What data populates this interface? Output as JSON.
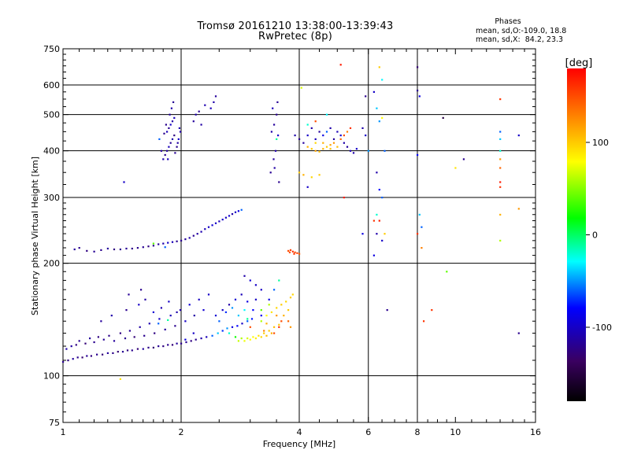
{
  "header": {
    "title_line1": "Tromsø 20161210 13:38:00-13:39:43",
    "title_line2": "RwPretec (8p)",
    "phases_title": "Phases",
    "phases_line1": "mean, sd,O:-109.0, 18.8",
    "phases_line2": "mean, sd,X:  84.2, 23.3"
  },
  "chart_data": {
    "type": "scatter",
    "xlabel": "Frequency [MHz]",
    "ylabel": "Stationary phase Virtual Height [km]",
    "xscale": "log",
    "yscale": "log",
    "xlim": [
      1,
      16
    ],
    "ylim": [
      75,
      750
    ],
    "xticks": [
      1,
      2,
      4,
      6,
      8,
      10,
      16
    ],
    "xgrid": [
      2,
      4,
      6,
      8
    ],
    "yticks": [
      75,
      100,
      200,
      300,
      400,
      500,
      600,
      750
    ],
    "ygrid": [
      100,
      200,
      300,
      400,
      500,
      600
    ],
    "colorbar": {
      "label": "[deg]",
      "range": [
        -180,
        180
      ],
      "ticks": [
        -100,
        0,
        100
      ]
    },
    "points": [
      [
        1.0,
        109,
        -120
      ],
      [
        1.03,
        110,
        -125
      ],
      [
        1.06,
        111,
        -115
      ],
      [
        1.09,
        112,
        -120
      ],
      [
        1.12,
        112,
        -130
      ],
      [
        1.15,
        113,
        -118
      ],
      [
        1.18,
        113,
        -125
      ],
      [
        1.22,
        114,
        -120
      ],
      [
        1.26,
        114,
        -128
      ],
      [
        1.3,
        115,
        -115
      ],
      [
        1.34,
        115,
        -122
      ],
      [
        1.38,
        116,
        -130
      ],
      [
        1.42,
        116,
        -118
      ],
      [
        1.46,
        117,
        -125
      ],
      [
        1.5,
        117,
        -120
      ],
      [
        1.55,
        118,
        -128
      ],
      [
        1.6,
        118,
        -115
      ],
      [
        1.65,
        119,
        -122
      ],
      [
        1.7,
        119,
        -130
      ],
      [
        1.75,
        120,
        -118
      ],
      [
        1.8,
        120,
        -125
      ],
      [
        1.85,
        121,
        -120
      ],
      [
        1.9,
        121,
        -128
      ],
      [
        1.95,
        122,
        -115
      ],
      [
        2.0,
        122,
        -122
      ],
      [
        2.06,
        123,
        -118
      ],
      [
        2.12,
        124,
        -125
      ],
      [
        2.18,
        125,
        -120
      ],
      [
        2.25,
        126,
        -110
      ],
      [
        2.32,
        127,
        -105
      ],
      [
        1.02,
        118,
        -110
      ],
      [
        1.05,
        120,
        -112
      ],
      [
        1.08,
        121,
        -125
      ],
      [
        1.1,
        124,
        -118
      ],
      [
        1.14,
        122,
        -128
      ],
      [
        1.17,
        126,
        -115
      ],
      [
        1.2,
        123,
        -120
      ],
      [
        1.23,
        127,
        -125
      ],
      [
        1.27,
        125,
        -118
      ],
      [
        1.31,
        128,
        -122
      ],
      [
        1.35,
        124,
        -115
      ],
      [
        1.4,
        130,
        -125
      ],
      [
        1.44,
        126,
        -120
      ],
      [
        1.48,
        132,
        -118
      ],
      [
        1.52,
        127,
        -128
      ],
      [
        1.57,
        135,
        -112
      ],
      [
        1.61,
        128,
        -120
      ],
      [
        1.66,
        138,
        -108
      ],
      [
        1.71,
        130,
        -125
      ],
      [
        1.76,
        142,
        -100
      ],
      [
        1.82,
        133,
        -115
      ],
      [
        1.88,
        145,
        -105
      ],
      [
        1.93,
        136,
        -120
      ],
      [
        1.99,
        150,
        -110
      ],
      [
        2.05,
        140,
        -100
      ],
      [
        2.1,
        155,
        -95
      ],
      [
        2.16,
        145,
        -112
      ],
      [
        2.22,
        160,
        -102
      ],
      [
        2.28,
        150,
        -95
      ],
      [
        2.35,
        165,
        -100
      ],
      [
        1.25,
        140,
        -115
      ],
      [
        1.33,
        145,
        -110
      ],
      [
        1.45,
        150,
        -120
      ],
      [
        1.56,
        155,
        -100
      ],
      [
        1.62,
        160,
        -112
      ],
      [
        1.7,
        148,
        -95
      ],
      [
        1.78,
        152,
        -108
      ],
      [
        1.86,
        158,
        -100
      ],
      [
        1.47,
        165,
        -118
      ],
      [
        1.58,
        170,
        -120
      ],
      [
        1.75,
        138,
        -60
      ],
      [
        1.85,
        141,
        -10
      ],
      [
        1.95,
        148,
        -110
      ],
      [
        2.05,
        125,
        -90
      ],
      [
        2.15,
        130,
        -100
      ],
      [
        1.4,
        98,
        90
      ],
      [
        2.4,
        128,
        -60
      ],
      [
        2.48,
        130,
        -40
      ],
      [
        2.55,
        132,
        -70
      ],
      [
        2.62,
        134,
        -50
      ],
      [
        2.7,
        135,
        -90
      ],
      [
        2.78,
        136,
        -80
      ],
      [
        2.86,
        138,
        -100
      ],
      [
        2.95,
        140,
        -60
      ],
      [
        3.03,
        142,
        -75
      ],
      [
        2.45,
        145,
        -95
      ],
      [
        2.55,
        150,
        -100
      ],
      [
        2.65,
        155,
        -110
      ],
      [
        2.75,
        160,
        -95
      ],
      [
        2.85,
        165,
        -105
      ],
      [
        2.95,
        158,
        -90
      ],
      [
        3.05,
        150,
        -80
      ],
      [
        3.1,
        160,
        -100
      ],
      [
        2.5,
        140,
        -60
      ],
      [
        2.6,
        148,
        -70
      ],
      [
        2.7,
        152,
        -50
      ],
      [
        2.8,
        145,
        -40
      ],
      [
        2.9,
        150,
        -30
      ],
      [
        2.65,
        130,
        -20
      ],
      [
        2.75,
        127,
        20
      ],
      [
        2.85,
        126,
        60
      ],
      [
        2.95,
        126,
        70
      ],
      [
        3.05,
        127,
        80
      ],
      [
        3.15,
        128,
        90
      ],
      [
        3.25,
        130,
        100
      ],
      [
        3.35,
        132,
        100
      ],
      [
        3.45,
        135,
        105
      ],
      [
        3.55,
        137,
        100
      ],
      [
        2.8,
        124,
        65
      ],
      [
        2.9,
        124,
        75
      ],
      [
        3.0,
        125,
        80
      ],
      [
        3.1,
        126,
        85
      ],
      [
        3.2,
        127,
        95
      ],
      [
        3.3,
        128,
        105
      ],
      [
        3.4,
        130,
        110
      ],
      [
        3.2,
        140,
        60
      ],
      [
        3.3,
        145,
        80
      ],
      [
        3.4,
        148,
        90
      ],
      [
        3.5,
        152,
        95
      ],
      [
        3.6,
        155,
        100
      ],
      [
        3.7,
        158,
        95
      ],
      [
        3.8,
        162,
        100
      ],
      [
        3.2,
        150,
        40
      ],
      [
        3.35,
        155,
        60
      ],
      [
        3.5,
        145,
        120
      ],
      [
        3.6,
        140,
        150
      ],
      [
        3.45,
        130,
        150
      ],
      [
        3.55,
        135,
        160
      ],
      [
        3.3,
        138,
        110
      ],
      [
        3.25,
        132,
        130
      ],
      [
        3.65,
        145,
        110
      ],
      [
        3.75,
        150,
        100
      ],
      [
        3.85,
        165,
        95
      ],
      [
        3.75,
        140,
        140
      ],
      [
        3.8,
        135,
        120
      ],
      [
        3.0,
        135,
        150
      ],
      [
        2.95,
        142,
        -10
      ],
      [
        3.2,
        170,
        -100
      ],
      [
        3.35,
        160,
        -90
      ],
      [
        3.45,
        170,
        -60
      ],
      [
        3.55,
        180,
        -10
      ],
      [
        3.2,
        145,
        -85
      ],
      [
        3.1,
        175,
        -100
      ],
      [
        3.0,
        180,
        -95
      ],
      [
        2.9,
        185,
        -110
      ],
      [
        1.07,
        218,
        -115
      ],
      [
        1.1,
        220,
        -120
      ],
      [
        1.15,
        216,
        -125
      ],
      [
        1.2,
        215,
        -118
      ],
      [
        1.25,
        217,
        -120
      ],
      [
        1.3,
        219,
        -115
      ],
      [
        1.35,
        218,
        -125
      ],
      [
        1.4,
        218,
        -120
      ],
      [
        1.45,
        219,
        -118
      ],
      [
        1.5,
        219,
        -122
      ],
      [
        1.55,
        220,
        -120
      ],
      [
        1.6,
        221,
        -118
      ],
      [
        1.65,
        222,
        -125
      ],
      [
        1.7,
        223,
        -120
      ],
      [
        1.75,
        225,
        -115
      ],
      [
        1.8,
        226,
        -110
      ],
      [
        1.85,
        227,
        -100
      ],
      [
        1.9,
        228,
        -105
      ],
      [
        1.95,
        229,
        -118
      ],
      [
        2.0,
        230,
        -120
      ],
      [
        2.05,
        232,
        -115
      ],
      [
        2.1,
        234,
        -110
      ],
      [
        2.15,
        237,
        -118
      ],
      [
        2.2,
        240,
        -112
      ],
      [
        2.25,
        243,
        -108
      ],
      [
        2.3,
        247,
        -105
      ],
      [
        2.35,
        250,
        -100
      ],
      [
        2.4,
        253,
        -95
      ],
      [
        2.45,
        256,
        -100
      ],
      [
        2.5,
        259,
        -105
      ],
      [
        2.55,
        262,
        -98
      ],
      [
        2.6,
        265,
        -102
      ],
      [
        2.65,
        268,
        -95
      ],
      [
        2.7,
        271,
        -110
      ],
      [
        2.75,
        274,
        -100
      ],
      [
        2.8,
        276,
        -90
      ],
      [
        2.85,
        278,
        -60
      ],
      [
        1.7,
        226,
        40
      ],
      [
        1.82,
        221,
        -60
      ],
      [
        1.43,
        330,
        -100
      ],
      [
        3.75,
        216,
        150
      ],
      [
        3.8,
        217,
        155
      ],
      [
        3.85,
        215,
        160
      ],
      [
        3.9,
        214,
        150
      ],
      [
        3.95,
        213,
        155
      ],
      [
        4.0,
        212,
        145
      ],
      [
        3.78,
        214,
        150
      ],
      [
        3.88,
        212,
        160
      ],
      [
        1.8,
        380,
        -110
      ],
      [
        1.82,
        390,
        -120
      ],
      [
        1.84,
        400,
        -115
      ],
      [
        1.86,
        410,
        -105
      ],
      [
        1.88,
        420,
        -118
      ],
      [
        1.9,
        430,
        -110
      ],
      [
        1.92,
        440,
        -125
      ],
      [
        1.84,
        450,
        -105
      ],
      [
        1.86,
        460,
        -118
      ],
      [
        1.88,
        470,
        -100
      ],
      [
        1.9,
        480,
        -112
      ],
      [
        1.92,
        490,
        -105
      ],
      [
        1.78,
        400,
        -115
      ],
      [
        1.95,
        410,
        -120
      ],
      [
        1.97,
        430,
        -100
      ],
      [
        1.99,
        450,
        -110
      ],
      [
        1.83,
        470,
        -120
      ],
      [
        1.87,
        500,
        -115
      ],
      [
        1.89,
        520,
        -110
      ],
      [
        1.91,
        540,
        -118
      ],
      [
        1.85,
        380,
        -105
      ],
      [
        1.93,
        395,
        -118
      ],
      [
        1.96,
        420,
        -112
      ],
      [
        1.81,
        445,
        -120
      ],
      [
        1.98,
        460,
        -108
      ],
      [
        1.76,
        430,
        -60
      ],
      [
        2.15,
        480,
        -115
      ],
      [
        2.18,
        500,
        -110
      ],
      [
        2.22,
        510,
        -118
      ],
      [
        2.25,
        470,
        -112
      ],
      [
        2.38,
        520,
        -105
      ],
      [
        2.42,
        540,
        -110
      ],
      [
        2.45,
        560,
        -115
      ],
      [
        2.3,
        530,
        -108
      ],
      [
        3.4,
        450,
        -110
      ],
      [
        3.45,
        470,
        -115
      ],
      [
        3.5,
        500,
        -120
      ],
      [
        3.42,
        520,
        -105
      ],
      [
        3.52,
        540,
        -118
      ],
      [
        3.48,
        400,
        -110
      ],
      [
        3.44,
        380,
        -115
      ],
      [
        3.38,
        350,
        -118
      ],
      [
        3.46,
        360,
        -112
      ],
      [
        3.55,
        330,
        -120
      ],
      [
        3.5,
        430,
        -10
      ],
      [
        3.53,
        440,
        -100
      ],
      [
        3.9,
        440,
        -110
      ],
      [
        4.0,
        430,
        -120
      ],
      [
        4.1,
        420,
        -115
      ],
      [
        4.2,
        440,
        -100
      ],
      [
        4.3,
        460,
        -110
      ],
      [
        4.4,
        430,
        -105
      ],
      [
        4.5,
        450,
        -115
      ],
      [
        4.6,
        440,
        -90
      ],
      [
        4.7,
        450,
        -60
      ],
      [
        4.8,
        460,
        -110
      ],
      [
        4.9,
        430,
        -115
      ],
      [
        5.0,
        450,
        -105
      ],
      [
        5.1,
        440,
        -95
      ],
      [
        5.2,
        420,
        -110
      ],
      [
        5.3,
        410,
        -115
      ],
      [
        5.4,
        400,
        -105
      ],
      [
        5.5,
        395,
        -110
      ],
      [
        5.6,
        405,
        -100
      ],
      [
        4.2,
        410,
        110
      ],
      [
        4.3,
        405,
        100
      ],
      [
        4.4,
        400,
        115
      ],
      [
        4.5,
        398,
        105
      ],
      [
        4.6,
        405,
        110
      ],
      [
        4.7,
        410,
        100
      ],
      [
        4.8,
        415,
        115
      ],
      [
        4.9,
        420,
        120
      ],
      [
        5.0,
        410,
        105
      ],
      [
        4.4,
        420,
        95
      ],
      [
        4.6,
        420,
        110
      ],
      [
        4.8,
        405,
        105
      ],
      [
        5.1,
        430,
        140
      ],
      [
        5.2,
        440,
        150
      ],
      [
        5.3,
        450,
        130
      ],
      [
        5.4,
        460,
        160
      ],
      [
        4.0,
        350,
        100
      ],
      [
        4.1,
        345,
        110
      ],
      [
        4.3,
        340,
        95
      ],
      [
        4.5,
        345,
        100
      ],
      [
        4.2,
        470,
        -20
      ],
      [
        4.4,
        480,
        150
      ],
      [
        4.7,
        500,
        -30
      ],
      [
        5.8,
        460,
        -110
      ],
      [
        5.9,
        440,
        -100
      ],
      [
        4.05,
        590,
        70
      ],
      [
        5.1,
        680,
        170
      ],
      [
        4.2,
        320,
        -100
      ],
      [
        5.2,
        300,
        170
      ],
      [
        5.9,
        560,
        -120
      ],
      [
        6.2,
        575,
        -100
      ],
      [
        6.5,
        620,
        -30
      ],
      [
        6.3,
        520,
        -40
      ],
      [
        6.4,
        480,
        -50
      ],
      [
        6.3,
        350,
        -110
      ],
      [
        6.4,
        315,
        -80
      ],
      [
        6.5,
        300,
        -60
      ],
      [
        6.3,
        270,
        -20
      ],
      [
        6.4,
        260,
        170
      ],
      [
        6.3,
        240,
        -110
      ],
      [
        6.2,
        210,
        -90
      ],
      [
        6.2,
        260,
        160
      ],
      [
        6.5,
        230,
        -100
      ],
      [
        5.8,
        240,
        -90
      ],
      [
        6.0,
        400,
        -50
      ],
      [
        6.6,
        240,
        100
      ],
      [
        6.7,
        150,
        -120
      ],
      [
        6.4,
        670,
        100
      ],
      [
        6.5,
        490,
        80
      ],
      [
        6.6,
        400,
        -60
      ],
      [
        8.0,
        670,
        -130
      ],
      [
        8.0,
        580,
        -120
      ],
      [
        8.1,
        560,
        -90
      ],
      [
        8.0,
        390,
        -80
      ],
      [
        8.2,
        250,
        -60
      ],
      [
        8.1,
        270,
        -40
      ],
      [
        8.0,
        240,
        160
      ],
      [
        8.2,
        220,
        130
      ],
      [
        8.3,
        140,
        160
      ],
      [
        9.5,
        190,
        40
      ],
      [
        9.3,
        490,
        -150
      ],
      [
        8.7,
        150,
        160
      ],
      [
        10.0,
        360,
        90
      ],
      [
        10.5,
        380,
        -120
      ],
      [
        13.0,
        550,
        160
      ],
      [
        13.0,
        450,
        -60
      ],
      [
        13.0,
        430,
        -40
      ],
      [
        13.0,
        400,
        -20
      ],
      [
        13.0,
        380,
        120
      ],
      [
        13.0,
        360,
        140
      ],
      [
        13.0,
        330,
        170
      ],
      [
        13.0,
        320,
        160
      ],
      [
        13.0,
        270,
        110
      ],
      [
        13.0,
        230,
        60
      ],
      [
        14.5,
        440,
        -100
      ],
      [
        14.5,
        280,
        120
      ],
      [
        14.5,
        130,
        -120
      ]
    ]
  }
}
